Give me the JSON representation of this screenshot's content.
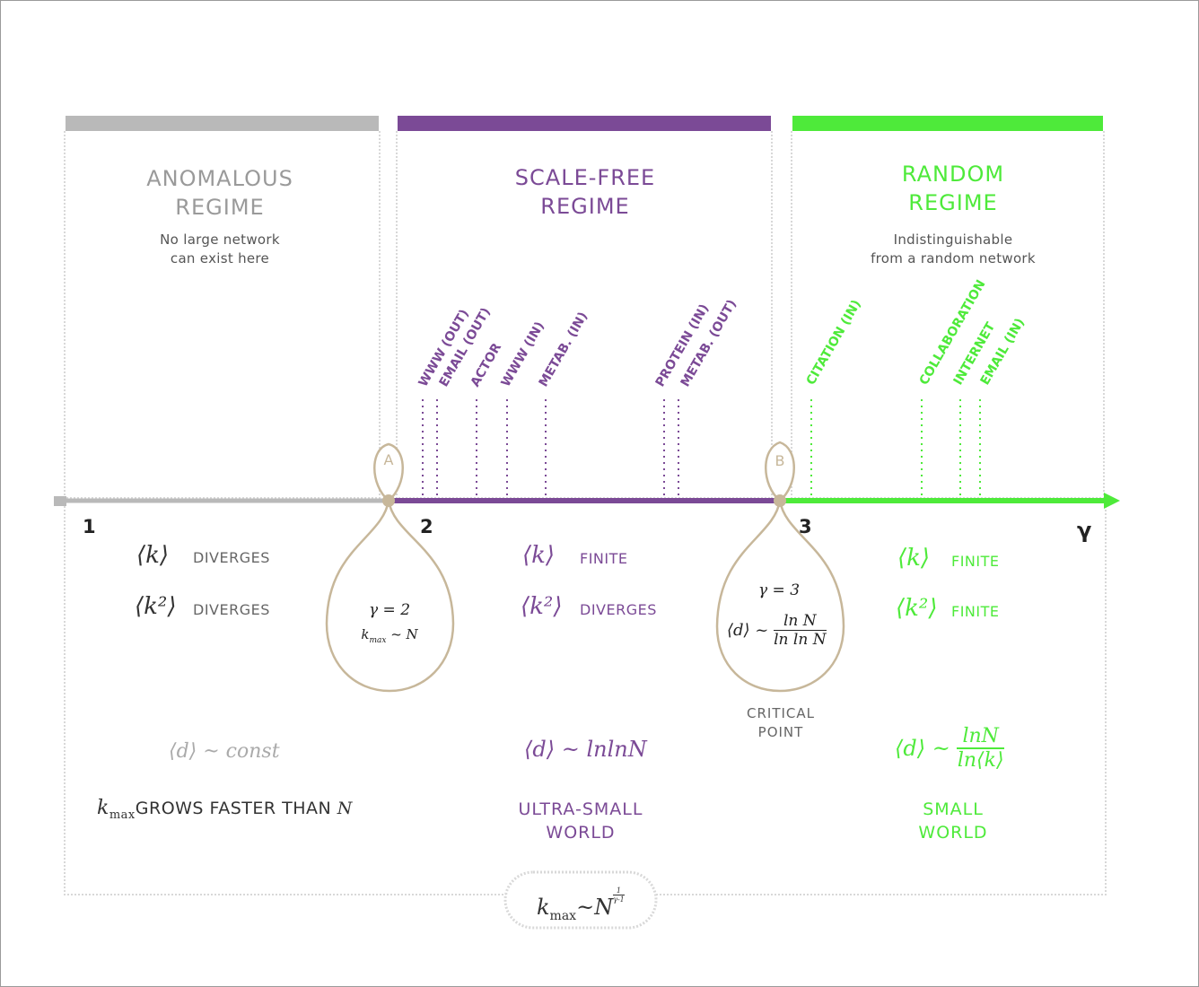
{
  "colors": {
    "anomalous": "#b9b9b9",
    "scalefree": "#7b4a96",
    "random": "#4eea3a",
    "bubble": "#c7b79a"
  },
  "regimes": {
    "anomalous": {
      "title_line1": "ANOMALOUS",
      "title_line2": "REGIME",
      "sub_line1": "No large network",
      "sub_line2": "can exist here"
    },
    "scalefree": {
      "title_line1": "SCALE-FREE",
      "title_line2": "REGIME"
    },
    "random": {
      "title_line1": "RANDOM",
      "title_line2": "REGIME",
      "sub_line1": "Indistinguishable",
      "sub_line2": "from a random network"
    }
  },
  "axis": {
    "label": "γ",
    "tick1": "1",
    "tick2": "2",
    "tick3": "3"
  },
  "networks_scalefree": [
    "WWW (OUT)",
    "EMAIL (OUT)",
    "ACTOR",
    "WWW (IN)",
    "METAB. (IN)",
    "PROTEIN (IN)",
    "METAB. (OUT)"
  ],
  "networks_random": [
    "CITATION (IN)",
    "COLLABORATION",
    "INTERNET",
    "EMAIL (IN)"
  ],
  "points": {
    "a": {
      "letter": "A",
      "gamma": "γ = 2",
      "kmax": "k",
      "kmax_sub": "max",
      "kmax_rel": " ~ N"
    },
    "b": {
      "letter": "B",
      "gamma": "γ = 3",
      "d": "⟨d⟩ ~",
      "num": "ln N",
      "den": "ln ln N",
      "cap1": "CRITICAL",
      "cap2": "POINT"
    }
  },
  "props": {
    "anomalous": {
      "k": "⟨k⟩",
      "k_label": "DIVERGES",
      "k2": "⟨k²⟩",
      "k2_label": "DIVERGES",
      "d": "⟨d⟩ ~ const",
      "kmax": "k",
      "kmax_sub": "max",
      "kmax_label": "GROWS FASTER THAN ",
      "kmax_n": "N"
    },
    "scalefree": {
      "k": "⟨k⟩",
      "k_label": "FINITE",
      "k2": "⟨k²⟩",
      "k2_label": "DIVERGES",
      "d": "⟨d⟩ ~ lnlnN",
      "cap1": "ULTRA-SMALL",
      "cap2": "WORLD"
    },
    "random": {
      "k": "⟨k⟩",
      "k_label": "FINITE",
      "k2": "⟨k²⟩",
      "k2_label": "FINITE",
      "d": "⟨d⟩ ~",
      "d_num": "lnN",
      "d_den": "ln⟨k⟩",
      "cap1": "SMALL",
      "cap2": "WORLD"
    }
  },
  "formula": {
    "k": "k",
    "sub": "max",
    "rel": "~N",
    "exp_num": "1",
    "exp_den": "γ-1"
  }
}
